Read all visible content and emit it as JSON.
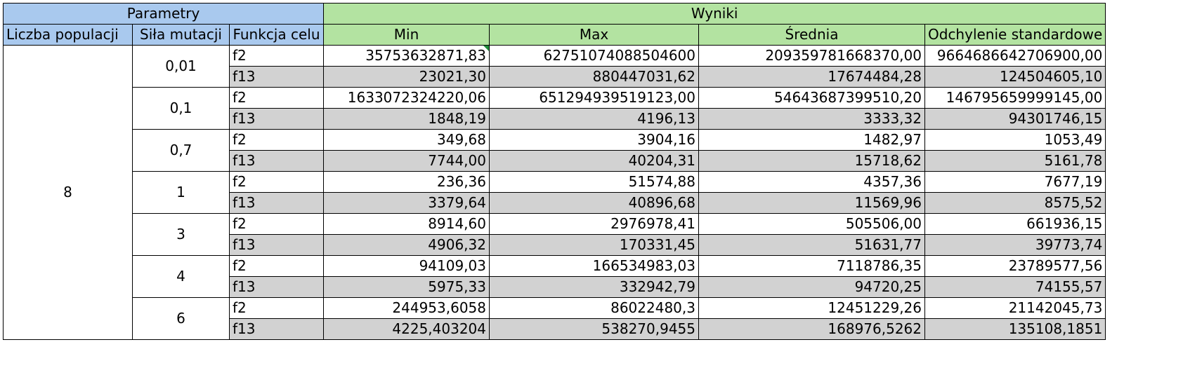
{
  "headers": {
    "group_params": "Parametry",
    "group_results": "Wyniki",
    "population": "Liczba populacji",
    "mutation": "Siła mutacji",
    "objective": "Funkcja celu",
    "min": "Min",
    "max": "Max",
    "mean": "Średnia",
    "std": "Odchylenie standardowe"
  },
  "population_value": "8",
  "groups": [
    {
      "mutation": "0,01",
      "rows": [
        {
          "fn": "f2",
          "min": "35753632871,83",
          "max": "62751074088504600",
          "mean": "209359781668370,00",
          "std": "9664686642706900,00"
        },
        {
          "fn": "f13",
          "min": "23021,30",
          "max": "880447031,62",
          "mean": "17674484,28",
          "std": "124504605,10"
        }
      ]
    },
    {
      "mutation": "0,1",
      "rows": [
        {
          "fn": "f2",
          "min": "1633072324220,06",
          "max": "651294939519123,00",
          "mean": "54643687399510,20",
          "std": "146795659999145,00"
        },
        {
          "fn": "f13",
          "min": "1848,19",
          "max": "4196,13",
          "mean": "3333,32",
          "std": "94301746,15"
        }
      ]
    },
    {
      "mutation": "0,7",
      "rows": [
        {
          "fn": "f2",
          "min": "349,68",
          "max": "3904,16",
          "mean": "1482,97",
          "std": "1053,49"
        },
        {
          "fn": "f13",
          "min": "7744,00",
          "max": "40204,31",
          "mean": "15718,62",
          "std": "5161,78"
        }
      ]
    },
    {
      "mutation": "1",
      "rows": [
        {
          "fn": "f2",
          "min": "236,36",
          "max": "51574,88",
          "mean": "4357,36",
          "std": "7677,19"
        },
        {
          "fn": "f13",
          "min": "3379,64",
          "max": "40896,68",
          "mean": "11569,96",
          "std": "8575,52"
        }
      ]
    },
    {
      "mutation": "3",
      "rows": [
        {
          "fn": "f2",
          "min": "8914,60",
          "max": "2976978,41",
          "mean": "505506,00",
          "std": "661936,15"
        },
        {
          "fn": "f13",
          "min": "4906,32",
          "max": "170331,45",
          "mean": "51631,77",
          "std": "39773,74"
        }
      ]
    },
    {
      "mutation": "4",
      "rows": [
        {
          "fn": "f2",
          "min": "94109,03",
          "max": "166534983,03",
          "mean": "7118786,35",
          "std": "23789577,56"
        },
        {
          "fn": "f13",
          "min": "5975,33",
          "max": "332942,79",
          "mean": "94720,25",
          "std": "74155,57"
        }
      ]
    },
    {
      "mutation": "6",
      "rows": [
        {
          "fn": "f2",
          "min": "244953,6058",
          "max": "86022480,3",
          "mean": "12451229,26",
          "std": "21142045,73"
        },
        {
          "fn": "f13",
          "min": "4225,403204",
          "max": "538270,9455",
          "mean": "168976,5262",
          "std": "135108,1851"
        }
      ]
    }
  ],
  "colors": {
    "header_params": "#a9c9ee",
    "header_results": "#b3e3a1",
    "shaded_row": "#d2d2d2",
    "cell_flag": "#1f8a3a"
  }
}
